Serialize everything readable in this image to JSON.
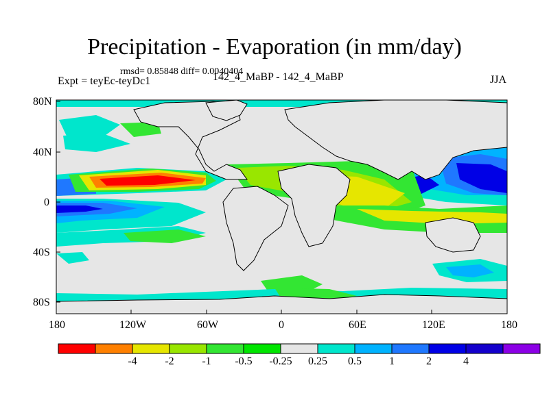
{
  "title": "Precipitation - Evaporation (in mm/day)",
  "stats": "rmsd= 0.85848 diff= 0.0040404",
  "experiment": "Expt = teyEc-teyDc1",
  "subtitle": "142_4_MaBP - 142_4_MaBP",
  "season": "JJA",
  "lat_labels": [
    "80N",
    "40N",
    "0",
    "40S",
    "80S"
  ],
  "lon_labels": [
    "180",
    "120W",
    "60W",
    "0",
    "60E",
    "120E",
    "180"
  ],
  "colorbar": {
    "colors": [
      "#ff0000",
      "#ff8000",
      "#e6e600",
      "#99e600",
      "#33e633",
      "#00e600",
      "#e6e6e6",
      "#00e6cc",
      "#00b3ff",
      "#1f78ff",
      "#0000e6",
      "#1400cc",
      "#8c00e6"
    ],
    "labels": [
      "-4",
      "-2",
      "-1",
      "-0.5",
      "-0.25",
      "0.25",
      "0.5",
      "1",
      "2",
      "4"
    ]
  },
  "colors": {
    "strong_neg": "#ff0000",
    "neg": "#ff8000",
    "mid_neg": "#e6e600",
    "weak_neg": "#99e600",
    "green": "#33e633",
    "neutral": "#e6e6e6",
    "cyan": "#00e6cc",
    "light_blue": "#00b3ff",
    "blue": "#1f78ff",
    "dark_blue": "#0000e6"
  }
}
